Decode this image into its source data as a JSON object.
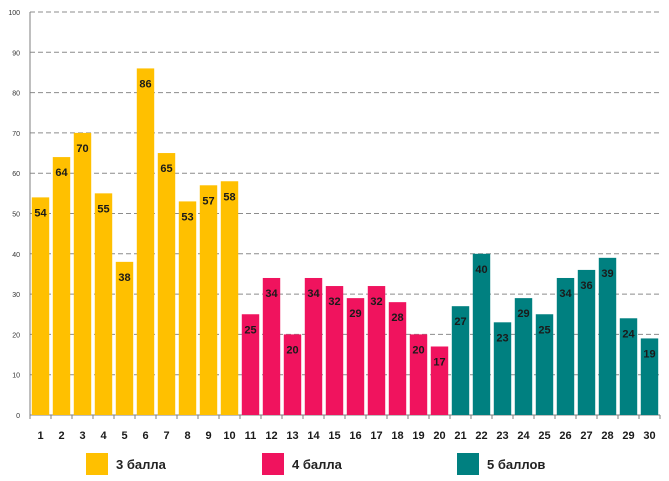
{
  "chart_data": {
    "type": "bar",
    "categories": [
      "1",
      "2",
      "3",
      "4",
      "5",
      "6",
      "7",
      "8",
      "9",
      "10",
      "11",
      "12",
      "13",
      "14",
      "15",
      "16",
      "17",
      "18",
      "19",
      "20",
      "21",
      "22",
      "23",
      "24",
      "25",
      "26",
      "27",
      "28",
      "29",
      "30"
    ],
    "values": [
      54,
      64,
      70,
      55,
      38,
      86,
      65,
      53,
      57,
      58,
      25,
      34,
      20,
      34,
      32,
      29,
      32,
      28,
      20,
      17,
      27,
      40,
      23,
      29,
      25,
      34,
      36,
      39,
      24,
      19
    ],
    "ylim": [
      0,
      100
    ],
    "yticks": [
      0,
      10,
      20,
      30,
      40,
      50,
      60,
      70,
      80,
      90,
      100
    ],
    "grid": true,
    "legend_position": "bottom",
    "series": [
      {
        "name": "3 балла",
        "color": "#FFC000",
        "range": [
          1,
          10
        ]
      },
      {
        "name": "4 балла",
        "color": "#F0135E",
        "range": [
          11,
          20
        ]
      },
      {
        "name": "5 баллов",
        "color": "#008080",
        "range": [
          21,
          30
        ]
      }
    ]
  }
}
